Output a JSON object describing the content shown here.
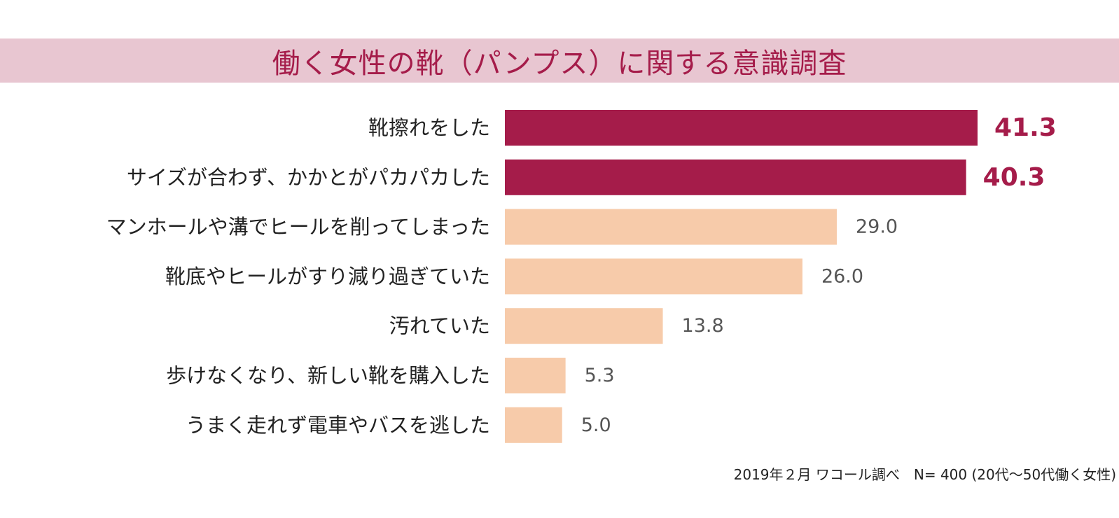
{
  "colors": {
    "title_band": "#e8c6d1",
    "title_text": "#a51c4a",
    "highlight_bar": "#a51c4a",
    "normal_bar": "#f7cbaa",
    "normal_value_text": "#555555",
    "label_text": "#222222"
  },
  "title": "働く女性の靴（パンプス）に関する意識調査",
  "footer": "2019年２月 ワコール調べ　N= 400 (20代〜50代働く女性)",
  "chart_data": {
    "type": "bar",
    "orientation": "horizontal",
    "title": "働く女性の靴（パンプス）に関する意識調査",
    "categories": [
      "靴擦れをした",
      "サイズが合わず、かかとがパカパカした",
      "マンホールや溝でヒールを削ってしまった",
      "靴底やヒールがすり減り過ぎていた",
      "汚れていた",
      "歩けなくなり、新しい靴を購入した",
      "うまく走れず電車やバスを逃した"
    ],
    "values": [
      41.3,
      40.3,
      29.0,
      26.0,
      13.8,
      5.3,
      5.0
    ],
    "value_labels": [
      "41.3",
      "40.3",
      "29.0",
      "26.0",
      "13.8",
      "5.3",
      "5.0"
    ],
    "highlighted": [
      true,
      true,
      false,
      false,
      false,
      false,
      false
    ],
    "xlim": [
      0,
      41.3
    ],
    "grid": false,
    "legend": "none"
  }
}
